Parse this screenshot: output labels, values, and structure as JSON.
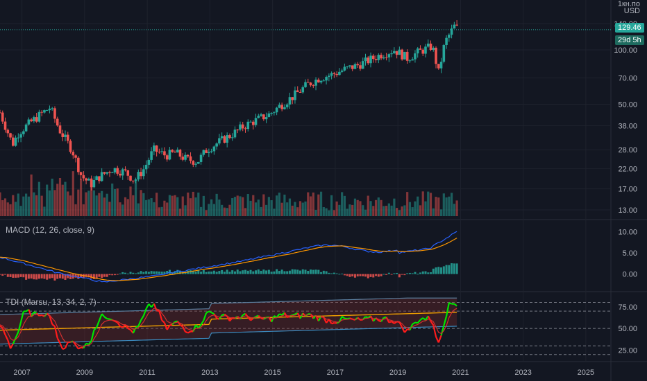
{
  "price_scale": {
    "unit_line1": "1кн.по",
    "unit_line2": "USD",
    "ticks": [
      "140.00",
      "100.00",
      "70.00",
      "50.00",
      "38.00",
      "28.00",
      "22.00",
      "17.00",
      "13.00"
    ],
    "last_price": "129.46",
    "countdown": "29d 5h",
    "last_price_color": "#26a69a"
  },
  "macd": {
    "label": "MACD (12, 26, close, 9)",
    "ticks": [
      "10.00",
      "5.00",
      "0.00"
    ]
  },
  "tdi": {
    "label": "TDI (Marsu, 13, 34, 2, 7)",
    "ticks": [
      "75.00",
      "50.00",
      "25.00"
    ]
  },
  "time_axis": {
    "ticks": [
      "2007",
      "2009",
      "2011",
      "2013",
      "2015",
      "2017",
      "2019",
      "2021",
      "2023",
      "2025"
    ]
  },
  "colors": {
    "up": "#26a69a",
    "down": "#ef5350",
    "macd_line": "#2962ff",
    "signal_line": "#ff9800",
    "tdi_green": "#00e600",
    "tdi_red": "#ff1c1c",
    "tdi_mid": "#f0a000",
    "band": "#5b7f9f"
  },
  "chart_data": {
    "type": "candlestick",
    "x_range": [
      2006.3,
      2025.8
    ],
    "y_scale": "log",
    "ylim": [
      12,
      170
    ],
    "price_path": [
      [
        2006.3,
        45
      ],
      [
        2006.7,
        30
      ],
      [
        2006.9,
        35
      ],
      [
        2007.3,
        40
      ],
      [
        2007.6,
        44
      ],
      [
        2007.9,
        48
      ],
      [
        2008.2,
        36
      ],
      [
        2008.6,
        28
      ],
      [
        2008.9,
        20
      ],
      [
        2009.2,
        18
      ],
      [
        2009.5,
        20
      ],
      [
        2009.9,
        22
      ],
      [
        2010.3,
        21
      ],
      [
        2010.6,
        19
      ],
      [
        2010.9,
        22
      ],
      [
        2011.2,
        28
      ],
      [
        2011.6,
        26
      ],
      [
        2011.9,
        27
      ],
      [
        2012.2,
        25
      ],
      [
        2012.6,
        24
      ],
      [
        2012.9,
        28
      ],
      [
        2013.3,
        31
      ],
      [
        2013.7,
        34
      ],
      [
        2014.1,
        38
      ],
      [
        2014.5,
        41
      ],
      [
        2014.9,
        44
      ],
      [
        2015.3,
        50
      ],
      [
        2015.7,
        56
      ],
      [
        2016.1,
        64
      ],
      [
        2016.5,
        70
      ],
      [
        2016.9,
        73
      ],
      [
        2017.3,
        78
      ],
      [
        2017.7,
        82
      ],
      [
        2018.1,
        88
      ],
      [
        2018.5,
        95
      ],
      [
        2018.9,
        100
      ],
      [
        2019.3,
        90
      ],
      [
        2019.7,
        98
      ],
      [
        2020.1,
        105
      ],
      [
        2020.3,
        75
      ],
      [
        2020.5,
        110
      ],
      [
        2020.8,
        135
      ],
      [
        2020.95,
        129.46
      ]
    ],
    "macd_range": [
      -3,
      12
    ],
    "tdi_range": [
      15,
      90
    ]
  }
}
